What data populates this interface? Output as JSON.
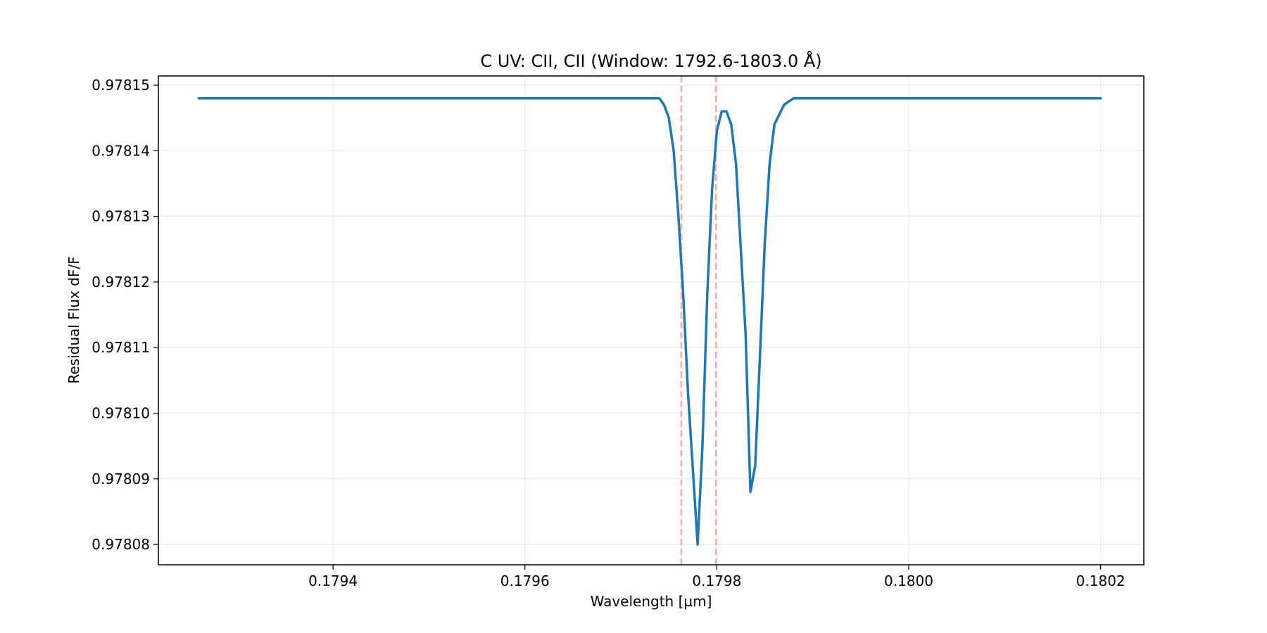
{
  "chart_data": {
    "type": "line",
    "title": "C UV: CII, CII (Window: 1792.6-1803.0 Å)",
    "xlabel": "Wavelength [µm]",
    "ylabel": "Residual Flux dF/F",
    "xlim": [
      0.179218,
      0.180245
    ],
    "ylim": [
      0.9780769,
      0.9781514
    ],
    "x_ticks": [
      0.1794,
      0.1796,
      0.1798,
      0.18,
      0.1802
    ],
    "x_tick_labels": [
      "0.1794",
      "0.1796",
      "0.1798",
      "0.1800",
      "0.1802"
    ],
    "y_ticks": [
      0.97808,
      0.97809,
      0.9781,
      0.97811,
      0.97812,
      0.97813,
      0.97814,
      0.97815
    ],
    "y_tick_labels": [
      "0.97808",
      "0.97809",
      "0.97810",
      "0.97811",
      "0.97812",
      "0.97813",
      "0.97814",
      "0.97815"
    ],
    "grid": true,
    "series": [
      {
        "color": "#1f77b4",
        "x": [
          0.17926,
          0.1794,
          0.1796,
          0.17972,
          0.17974,
          0.179745,
          0.17975,
          0.179755,
          0.17976,
          0.179765,
          0.17977,
          0.17978,
          0.179785,
          0.17979,
          0.179795,
          0.1798,
          0.179805,
          0.17981,
          0.179815,
          0.17982,
          0.17983,
          0.179835,
          0.17984,
          0.179845,
          0.17985,
          0.179855,
          0.17986,
          0.17987,
          0.17988,
          0.179885,
          0.17989,
          0.1799,
          0.17991,
          0.18,
          0.1802
        ],
        "y": [
          0.978148,
          0.978148,
          0.978148,
          0.978148,
          0.978148,
          0.978147,
          0.978145,
          0.97814,
          0.97813,
          0.978118,
          0.978103,
          0.97808,
          0.978095,
          0.978118,
          0.978134,
          0.978143,
          0.978146,
          0.978146,
          0.978144,
          0.978138,
          0.978112,
          0.978088,
          0.978092,
          0.978109,
          0.978126,
          0.978138,
          0.978144,
          0.978147,
          0.978148,
          0.978148,
          0.978148,
          0.978148,
          0.978148,
          0.978148,
          0.978148
        ]
      }
    ],
    "reference_lines": {
      "x": [
        0.179763,
        0.179799
      ],
      "color": "#ffaaaa",
      "style": "dashed"
    },
    "colors": {
      "axis": "#000000",
      "grid": "#e6e6e6",
      "line": "#1f77b4",
      "reference": "#ffaaaa"
    }
  }
}
